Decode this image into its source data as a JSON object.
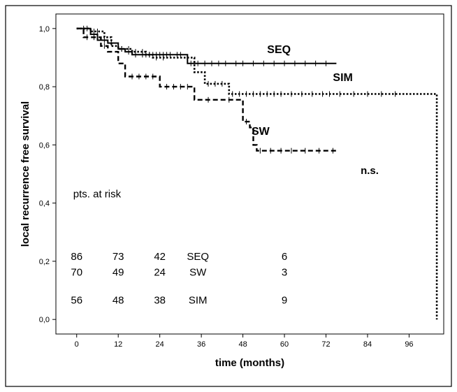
{
  "chart_data": {
    "type": "line",
    "subtype": "kaplan-meier step plot",
    "title": "",
    "xlabel": "time (months)",
    "ylabel": "local recurrence free survival",
    "xlim": [
      -6,
      106
    ],
    "ylim": [
      -0.05,
      1.05
    ],
    "x_ticks": [
      "0",
      "12",
      "24",
      "36",
      "48",
      "60",
      "72",
      "84",
      "96"
    ],
    "y_ticks": [
      "0,0",
      "0,2",
      "0,4",
      "0,6",
      "0,8",
      "1,0"
    ],
    "grid": false,
    "series": [
      {
        "name": "SEQ",
        "line_style": "solid",
        "x": [
          0,
          4,
          6,
          9,
          12,
          14,
          16,
          18,
          32,
          32,
          75
        ],
        "y": [
          1.0,
          0.98,
          0.96,
          0.95,
          0.93,
          0.92,
          0.91,
          0.91,
          0.91,
          0.88,
          0.88
        ],
        "censor_x": [
          3,
          5,
          8,
          10,
          13,
          15,
          17,
          19,
          20,
          21,
          22,
          23,
          24,
          25,
          26,
          27,
          29,
          30,
          33,
          35,
          37,
          39,
          41,
          43,
          46,
          48,
          51,
          54,
          57,
          60,
          63,
          66,
          69,
          72
        ]
      },
      {
        "name": "SW",
        "line_style": "dashed",
        "x": [
          0,
          2,
          7,
          9,
          12,
          14,
          24,
          34,
          48,
          50,
          51,
          52,
          75
        ],
        "y": [
          1.0,
          0.97,
          0.94,
          0.92,
          0.88,
          0.835,
          0.8,
          0.755,
          0.68,
          0.66,
          0.6,
          0.58,
          0.58
        ],
        "censor_x": [
          3,
          5,
          8,
          16,
          18,
          20,
          22,
          26,
          28,
          30,
          32,
          38,
          44,
          49,
          53,
          56,
          59,
          62,
          66,
          70,
          74
        ]
      },
      {
        "name": "SIM",
        "line_style": "dotted",
        "x": [
          0,
          4,
          8,
          10,
          12,
          16,
          20,
          22,
          34,
          37,
          44,
          104
        ],
        "y": [
          1.0,
          0.99,
          0.97,
          0.94,
          0.93,
          0.92,
          0.91,
          0.9,
          0.85,
          0.81,
          0.775,
          0.0
        ],
        "censor_x": [
          2,
          5,
          6,
          13,
          15,
          17,
          19,
          21,
          23,
          25,
          38,
          40,
          42,
          45,
          47,
          49,
          51,
          53,
          55,
          57,
          59,
          62,
          65,
          68,
          71,
          73,
          76,
          80,
          84,
          88,
          92
        ]
      }
    ],
    "series_labels": [
      {
        "text": "SEQ",
        "x": 55,
        "y": 0.915
      },
      {
        "text": "SIM",
        "x": 74,
        "y": 0.82
      },
      {
        "text": "SW",
        "x": 50.5,
        "y": 0.635
      }
    ],
    "annotations": [
      {
        "text": "n.s.",
        "x": 82,
        "y": 0.5,
        "bold": true
      },
      {
        "text": "pts. at risk",
        "x": -1,
        "y": 0.42,
        "bold": false
      }
    ],
    "risk_table": {
      "rows": [
        {
          "name": "SEQ",
          "values": [
            "86",
            "73",
            "42",
            "6"
          ],
          "y": 0.205
        },
        {
          "name": "SW",
          "values": [
            "70",
            "49",
            "24",
            "3"
          ],
          "y": 0.15
        },
        {
          "name": "SIM",
          "values": [
            "56",
            "48",
            "38",
            "9"
          ],
          "y": 0.055
        }
      ],
      "value_x": [
        0,
        12,
        24,
        60
      ],
      "label_x": 35
    }
  }
}
